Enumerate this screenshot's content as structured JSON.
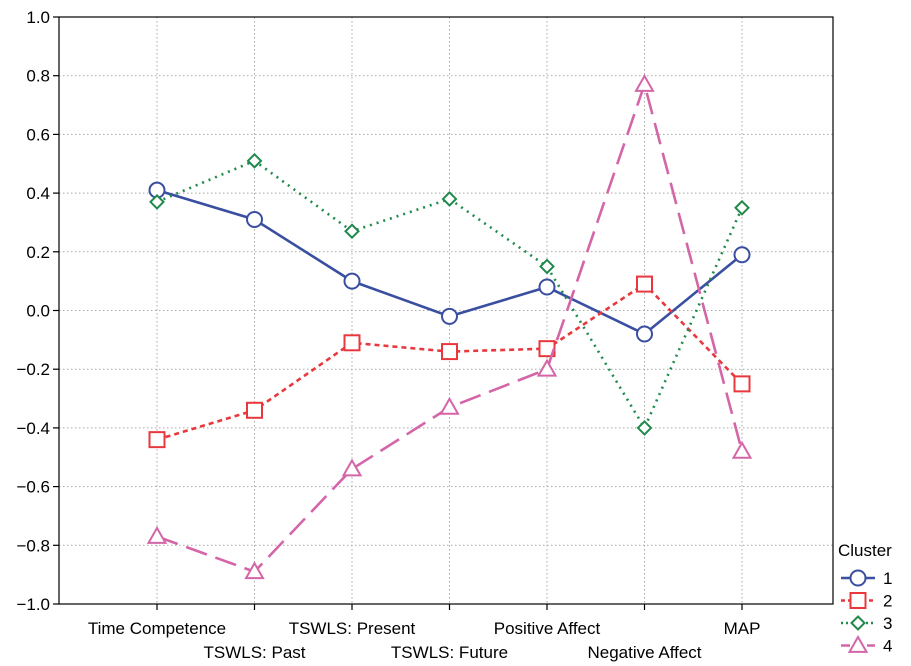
{
  "chart_data": {
    "type": "line",
    "categories": [
      "Time Competence",
      "TSWLS: Past",
      "TSWLS: Present",
      "TSWLS: Future",
      "Positive Affect",
      "Negative Affect",
      "MAP"
    ],
    "ylim": [
      -1.0,
      1.0
    ],
    "yticks": [
      "1.0",
      "0.8",
      "0.6",
      "0.4",
      "0.2",
      "0.0",
      "−0.2",
      "−0.4",
      "−0.6",
      "−0.8",
      "−1.0"
    ],
    "ytick_values": [
      1.0,
      0.8,
      0.6,
      0.4,
      0.2,
      0.0,
      -0.2,
      -0.4,
      -0.6,
      -0.8,
      -1.0
    ],
    "grid": true,
    "legend": {
      "title": "Cluster",
      "placement": "right"
    },
    "series": [
      {
        "name": "1",
        "values": [
          0.41,
          0.31,
          0.1,
          -0.02,
          0.08,
          -0.08,
          0.19
        ],
        "color": "#3a4fa0",
        "dash": "solid",
        "marker": "circle"
      },
      {
        "name": "2",
        "values": [
          -0.44,
          -0.34,
          -0.11,
          -0.14,
          -0.13,
          0.09,
          -0.25
        ],
        "color": "#e8383d",
        "dash": "dotted-short",
        "marker": "square"
      },
      {
        "name": "3",
        "values": [
          0.37,
          0.51,
          0.27,
          0.38,
          0.15,
          -0.4,
          0.35
        ],
        "color": "#1f8a4c",
        "dash": "dotted",
        "marker": "diamond"
      },
      {
        "name": "4",
        "values": [
          -0.77,
          -0.89,
          -0.54,
          -0.33,
          -0.2,
          0.77,
          -0.48
        ],
        "color": "#d466a8",
        "dash": "dashed-long",
        "marker": "triangle"
      }
    ]
  }
}
